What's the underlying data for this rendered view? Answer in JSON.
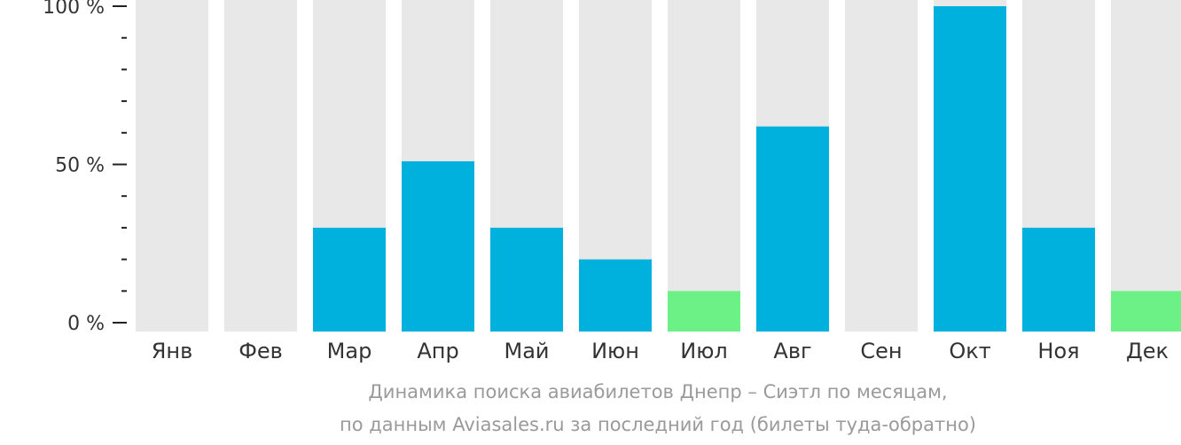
{
  "chart_data": {
    "type": "bar",
    "categories": [
      "Янв",
      "Фев",
      "Мар",
      "Апр",
      "Май",
      "Июн",
      "Июл",
      "Авг",
      "Сен",
      "Окт",
      "Ноя",
      "Дек"
    ],
    "values": [
      0,
      0,
      30,
      51,
      30,
      20,
      10,
      62,
      0,
      100,
      30,
      10
    ],
    "highlight": [
      false,
      false,
      false,
      false,
      false,
      false,
      true,
      false,
      false,
      false,
      false,
      true
    ],
    "ylim": [
      0,
      100
    ],
    "y_ticks": [
      {
        "value": 0,
        "label": "0 %"
      },
      {
        "value": 50,
        "label": "50 %"
      },
      {
        "value": 100,
        "label": "100 %"
      }
    ],
    "minor_ticks": [
      10,
      20,
      30,
      40,
      60,
      70,
      80,
      90
    ],
    "colors": {
      "bar": "#00b0dd",
      "highlight": "#6cf186",
      "track": "#e8e8e8",
      "axis": "#222222"
    }
  },
  "caption": {
    "line1": "Динамика поиска авиабилетов Днепр – Сиэтл по месяцам,",
    "line2": "по данным Aviasales.ru за последний год (билеты туда-обратно)"
  }
}
